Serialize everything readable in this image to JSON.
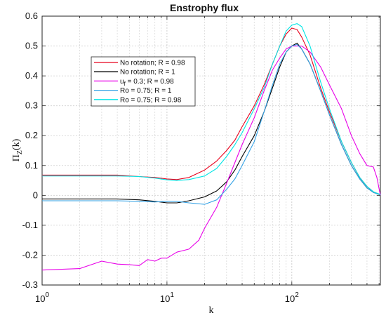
{
  "chart_data": {
    "type": "line",
    "title": "Enstrophy flux",
    "xlabel": "k",
    "ylabel_main": "Π",
    "ylabel_sub": "Z",
    "ylabel_tail": "(k)",
    "xscale": "log",
    "xlim": [
      1,
      512
    ],
    "ylim": [
      -0.3,
      0.6
    ],
    "x_ticks": [
      {
        "value": 1,
        "base": "10",
        "exp": "0"
      },
      {
        "value": 10,
        "base": "10",
        "exp": "1"
      },
      {
        "value": 100,
        "base": "10",
        "exp": "2"
      }
    ],
    "y_ticks": [
      {
        "value": -0.3,
        "label": "-0.3"
      },
      {
        "value": -0.2,
        "label": "-0.2"
      },
      {
        "value": -0.1,
        "label": "-0.1"
      },
      {
        "value": 0,
        "label": "0"
      },
      {
        "value": 0.1,
        "label": "0.1"
      },
      {
        "value": 0.2,
        "label": "0.2"
      },
      {
        "value": 0.3,
        "label": "0.3"
      },
      {
        "value": 0.4,
        "label": "0.4"
      },
      {
        "value": 0.5,
        "label": "0.5"
      },
      {
        "value": 0.6,
        "label": "0.6"
      }
    ],
    "grid": true,
    "legend_position": "upper-left",
    "series": [
      {
        "name": "No rotation; R = 0.98",
        "color": "#e8001c",
        "points": [
          [
            1,
            0.068
          ],
          [
            2,
            0.068
          ],
          [
            4,
            0.068
          ],
          [
            6,
            0.063
          ],
          [
            8,
            0.06
          ],
          [
            10,
            0.055
          ],
          [
            12,
            0.053
          ],
          [
            15,
            0.06
          ],
          [
            20,
            0.085
          ],
          [
            25,
            0.115
          ],
          [
            30,
            0.15
          ],
          [
            35,
            0.185
          ],
          [
            40,
            0.23
          ],
          [
            50,
            0.3
          ],
          [
            60,
            0.37
          ],
          [
            70,
            0.44
          ],
          [
            80,
            0.5
          ],
          [
            90,
            0.54
          ],
          [
            100,
            0.56
          ],
          [
            110,
            0.555
          ],
          [
            120,
            0.53
          ],
          [
            140,
            0.47
          ],
          [
            170,
            0.36
          ],
          [
            200,
            0.28
          ],
          [
            250,
            0.18
          ],
          [
            300,
            0.11
          ],
          [
            350,
            0.06
          ],
          [
            400,
            0.03
          ],
          [
            450,
            0.012
          ],
          [
            512,
            0.003
          ]
        ]
      },
      {
        "name": "No rotation; R = 1",
        "color": "#000000",
        "points": [
          [
            1,
            -0.012
          ],
          [
            2,
            -0.012
          ],
          [
            4,
            -0.012
          ],
          [
            6,
            -0.015
          ],
          [
            8,
            -0.02
          ],
          [
            10,
            -0.025
          ],
          [
            12,
            -0.025
          ],
          [
            15,
            -0.018
          ],
          [
            20,
            -0.005
          ],
          [
            25,
            0.015
          ],
          [
            30,
            0.045
          ],
          [
            35,
            0.085
          ],
          [
            40,
            0.13
          ],
          [
            50,
            0.2
          ],
          [
            60,
            0.28
          ],
          [
            70,
            0.36
          ],
          [
            80,
            0.43
          ],
          [
            90,
            0.48
          ],
          [
            100,
            0.5
          ],
          [
            110,
            0.51
          ],
          [
            120,
            0.49
          ],
          [
            140,
            0.44
          ],
          [
            170,
            0.35
          ],
          [
            200,
            0.27
          ],
          [
            250,
            0.17
          ],
          [
            300,
            0.1
          ],
          [
            350,
            0.055
          ],
          [
            400,
            0.025
          ],
          [
            450,
            0.01
          ],
          [
            512,
            0.002
          ]
        ]
      },
      {
        "name": "u_f = 0.3; R = 0.98",
        "color": "#e800e8",
        "points": [
          [
            1,
            -0.25
          ],
          [
            2,
            -0.245
          ],
          [
            3,
            -0.22
          ],
          [
            4,
            -0.23
          ],
          [
            5,
            -0.232
          ],
          [
            6,
            -0.235
          ],
          [
            7,
            -0.215
          ],
          [
            8,
            -0.22
          ],
          [
            9,
            -0.21
          ],
          [
            10,
            -0.21
          ],
          [
            12,
            -0.19
          ],
          [
            15,
            -0.18
          ],
          [
            18,
            -0.15
          ],
          [
            20,
            -0.11
          ],
          [
            25,
            -0.04
          ],
          [
            30,
            0.04
          ],
          [
            35,
            0.11
          ],
          [
            40,
            0.17
          ],
          [
            50,
            0.26
          ],
          [
            60,
            0.35
          ],
          [
            70,
            0.42
          ],
          [
            80,
            0.46
          ],
          [
            90,
            0.49
          ],
          [
            100,
            0.5
          ],
          [
            120,
            0.5
          ],
          [
            140,
            0.48
          ],
          [
            170,
            0.43
          ],
          [
            200,
            0.37
          ],
          [
            250,
            0.29
          ],
          [
            300,
            0.2
          ],
          [
            350,
            0.14
          ],
          [
            400,
            0.1
          ],
          [
            450,
            0.095
          ],
          [
            480,
            0.06
          ],
          [
            512,
            0.0
          ]
        ]
      },
      {
        "name": "Ro = 0.75; R = 1",
        "color": "#36a3e6",
        "points": [
          [
            1,
            -0.018
          ],
          [
            2,
            -0.018
          ],
          [
            4,
            -0.018
          ],
          [
            6,
            -0.02
          ],
          [
            8,
            -0.022
          ],
          [
            10,
            -0.02
          ],
          [
            12,
            -0.02
          ],
          [
            15,
            -0.025
          ],
          [
            20,
            -0.03
          ],
          [
            25,
            -0.015
          ],
          [
            30,
            0.02
          ],
          [
            35,
            0.055
          ],
          [
            40,
            0.1
          ],
          [
            50,
            0.18
          ],
          [
            60,
            0.28
          ],
          [
            70,
            0.37
          ],
          [
            80,
            0.44
          ],
          [
            90,
            0.48
          ],
          [
            100,
            0.5
          ],
          [
            110,
            0.505
          ],
          [
            120,
            0.49
          ],
          [
            140,
            0.44
          ],
          [
            170,
            0.35
          ],
          [
            200,
            0.27
          ],
          [
            250,
            0.17
          ],
          [
            300,
            0.1
          ],
          [
            350,
            0.055
          ],
          [
            400,
            0.025
          ],
          [
            450,
            0.01
          ],
          [
            512,
            0.002
          ]
        ]
      },
      {
        "name": "Ro = 0.75; R = 0.98",
        "color": "#00e5e5",
        "points": [
          [
            1,
            0.065
          ],
          [
            2,
            0.065
          ],
          [
            4,
            0.065
          ],
          [
            6,
            0.063
          ],
          [
            8,
            0.058
          ],
          [
            10,
            0.052
          ],
          [
            12,
            0.05
          ],
          [
            15,
            0.053
          ],
          [
            20,
            0.065
          ],
          [
            25,
            0.09
          ],
          [
            30,
            0.13
          ],
          [
            35,
            0.17
          ],
          [
            40,
            0.21
          ],
          [
            50,
            0.29
          ],
          [
            60,
            0.36
          ],
          [
            70,
            0.44
          ],
          [
            80,
            0.5
          ],
          [
            90,
            0.55
          ],
          [
            100,
            0.57
          ],
          [
            110,
            0.575
          ],
          [
            120,
            0.565
          ],
          [
            140,
            0.5
          ],
          [
            170,
            0.38
          ],
          [
            200,
            0.29
          ],
          [
            250,
            0.18
          ],
          [
            300,
            0.11
          ],
          [
            350,
            0.06
          ],
          [
            400,
            0.03
          ],
          [
            450,
            0.012
          ],
          [
            512,
            0.003
          ]
        ]
      }
    ]
  }
}
